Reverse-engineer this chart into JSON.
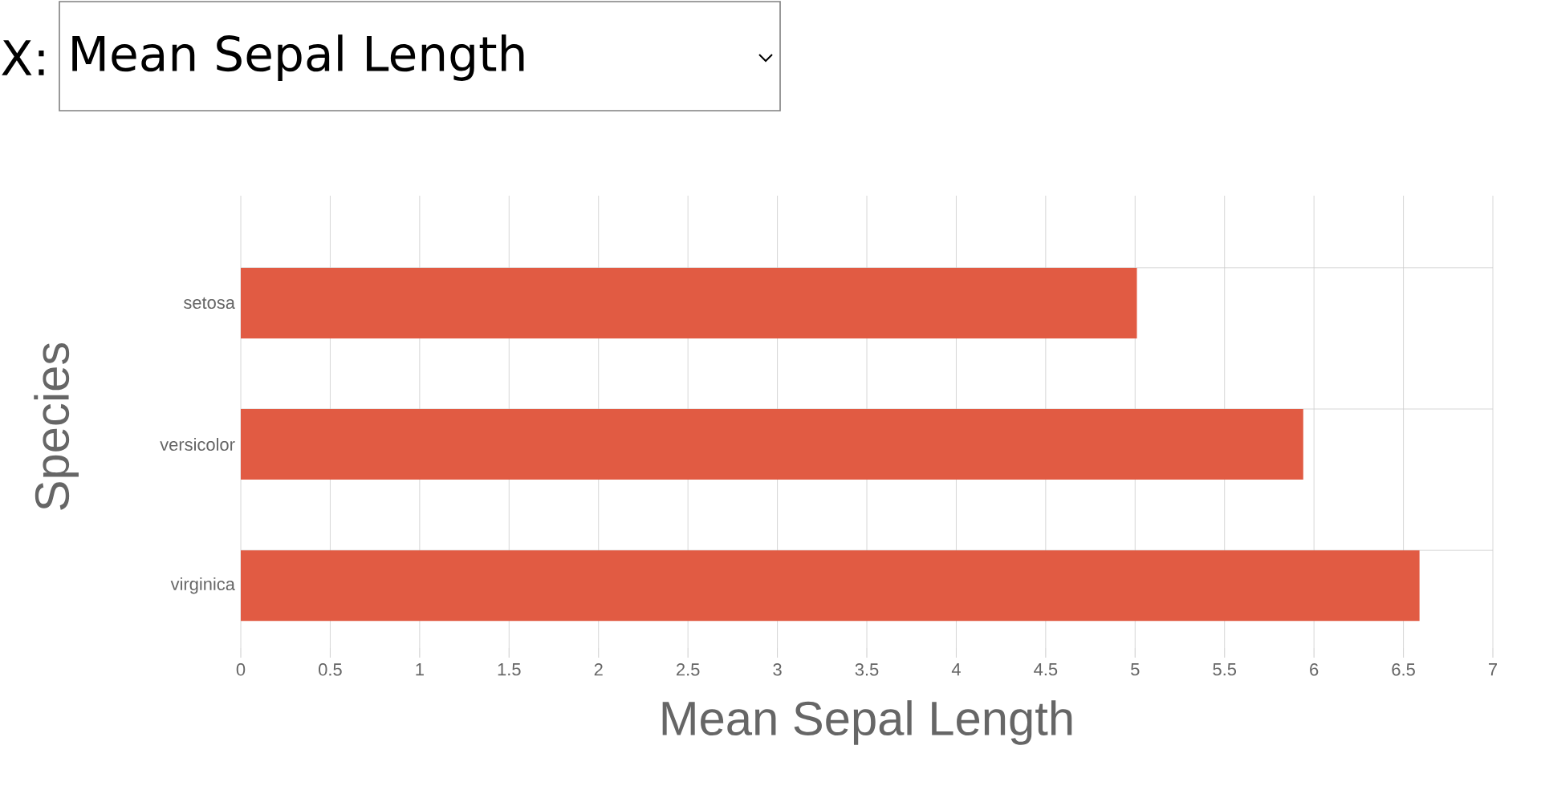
{
  "chart_data": {
    "type": "bar",
    "orientation": "horizontal",
    "annotations": [
      "X:",
      "Mean Sepal Length"
    ],
    "xlabel": "Mean Sepal Length",
    "ylabel": "Species",
    "categories": [
      "setosa",
      "versicolor",
      "virginica"
    ],
    "values": [
      5.01,
      5.94,
      6.59
    ],
    "color": "#e15b43",
    "xlim": [
      0,
      7
    ],
    "xticks": [
      0,
      0.5,
      1,
      1.5,
      2,
      2.5,
      3,
      3.5,
      4,
      4.5,
      5,
      5.5,
      6,
      6.5,
      7
    ],
    "grid": true
  }
}
